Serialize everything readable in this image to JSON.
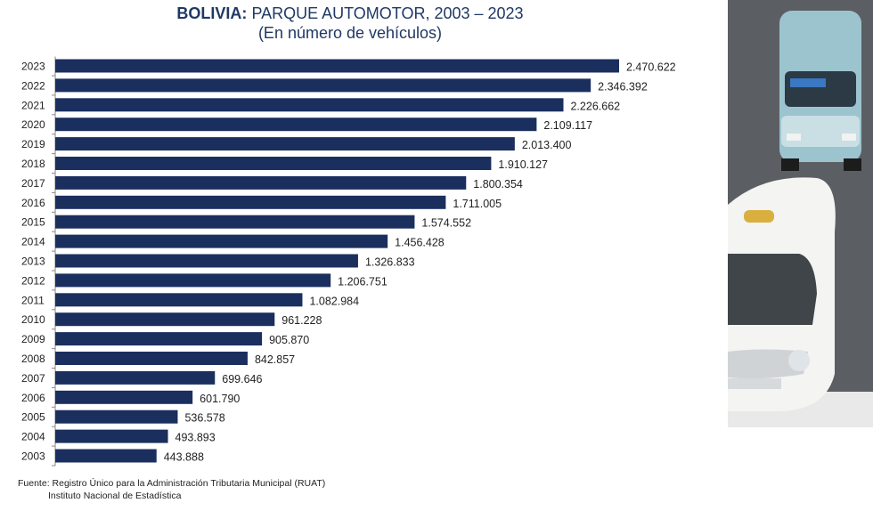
{
  "chart_data": {
    "type": "bar",
    "orientation": "horizontal",
    "title_bold": "BOLIVIA:",
    "title_rest": "PARQUE AUTOMOTOR, 2003 – 2023",
    "subtitle": "(En número de vehículos)",
    "categories": [
      "2023",
      "2022",
      "2021",
      "2020",
      "2019",
      "2018",
      "2017",
      "2016",
      "2015",
      "2014",
      "2013",
      "2012",
      "2011",
      "2010",
      "2009",
      "2008",
      "2007",
      "2006",
      "2005",
      "2004",
      "2003"
    ],
    "values": [
      2470622,
      2346392,
      2226662,
      2109117,
      2013400,
      1910127,
      1800354,
      1711005,
      1574552,
      1456428,
      1326833,
      1206751,
      1082984,
      961228,
      905870,
      842857,
      699646,
      601790,
      536578,
      493893,
      443888
    ],
    "value_labels": [
      "2.470.622",
      "2.346.392",
      "2.226.662",
      "2.109.117",
      "2.013.400",
      "1.910.127",
      "1.800.354",
      "1.711.005",
      "1.574.552",
      "1.456.428",
      "1.326.833",
      "1.206.751",
      "1.082.984",
      "961.228",
      "905.870",
      "842.857",
      "699.646",
      "601.790",
      "536.578",
      "493.893",
      "443.888"
    ],
    "xlim": [
      0,
      2470622
    ],
    "grid": false,
    "bar_color": "#1b2f5e"
  },
  "source": {
    "line1": "Fuente: Registro Único para la Administración Tributaria Municipal (RUAT)",
    "line2": "Instituto Nacional de Estadística"
  },
  "photo_icons": [
    "minibus-icon",
    "taxi-car-icon"
  ]
}
